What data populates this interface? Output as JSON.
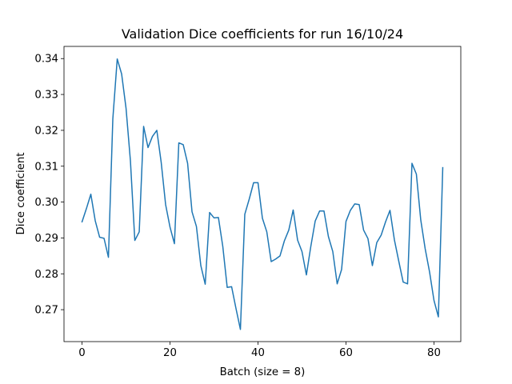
{
  "chart_data": {
    "type": "line",
    "title": "Validation Dice coefficients for run 16/10/24",
    "xlabel": "Batch (size = 8)",
    "ylabel": "Dice coefficient",
    "xlim": [
      -4.1,
      86.1
    ],
    "ylim": [
      0.2611,
      0.3434
    ],
    "xticks": [
      0,
      20,
      40,
      60,
      80
    ],
    "yticks": [
      0.27,
      0.28,
      0.29,
      0.3,
      0.31,
      0.32,
      0.33,
      0.34
    ],
    "ytick_labels": [
      "0.27",
      "0.28",
      "0.29",
      "0.30",
      "0.31",
      "0.32",
      "0.33",
      "0.34"
    ],
    "grid": false,
    "line_color": "#1f77b4",
    "series": [
      {
        "x": [
          0,
          1,
          2,
          3,
          4,
          5,
          6,
          7,
          8,
          9,
          10,
          11,
          12,
          13,
          14,
          15,
          16,
          17,
          18,
          19,
          20,
          21,
          22,
          23,
          24,
          25,
          26,
          27,
          28,
          29,
          30,
          31,
          32,
          33,
          34,
          35,
          36,
          37,
          38,
          39,
          40,
          41,
          42,
          43,
          44,
          45,
          46,
          47,
          48,
          49,
          50,
          51,
          52,
          53,
          54,
          55,
          56,
          57,
          58,
          59,
          60,
          61,
          62,
          63,
          64,
          65,
          66,
          67,
          68,
          69,
          70,
          71,
          72,
          73,
          74,
          75,
          76,
          77,
          78,
          79,
          80,
          81,
          82
        ],
        "values": [
          0.2945,
          0.2982,
          0.3022,
          0.2948,
          0.2902,
          0.2899,
          0.2846,
          0.3232,
          0.3399,
          0.3357,
          0.3262,
          0.3115,
          0.2893,
          0.2917,
          0.3211,
          0.3152,
          0.3183,
          0.32,
          0.311,
          0.2993,
          0.293,
          0.2884,
          0.3165,
          0.316,
          0.3108,
          0.2973,
          0.2932,
          0.2823,
          0.2771,
          0.2971,
          0.2956,
          0.2957,
          0.2876,
          0.2762,
          0.2764,
          0.2703,
          0.2645,
          0.2966,
          0.3008,
          0.3054,
          0.3054,
          0.2955,
          0.2917,
          0.2834,
          0.2841,
          0.285,
          0.2892,
          0.2922,
          0.2978,
          0.2894,
          0.2862,
          0.2797,
          0.2876,
          0.2947,
          0.2975,
          0.2975,
          0.2904,
          0.2862,
          0.2772,
          0.2812,
          0.2946,
          0.2977,
          0.2995,
          0.2993,
          0.2922,
          0.2898,
          0.2823,
          0.2887,
          0.2908,
          0.2945,
          0.2977,
          0.2895,
          0.2835,
          0.2777,
          0.2772,
          0.3108,
          0.3078,
          0.295,
          0.287,
          0.2805,
          0.2726,
          0.268,
          0.3096
        ]
      }
    ]
  }
}
